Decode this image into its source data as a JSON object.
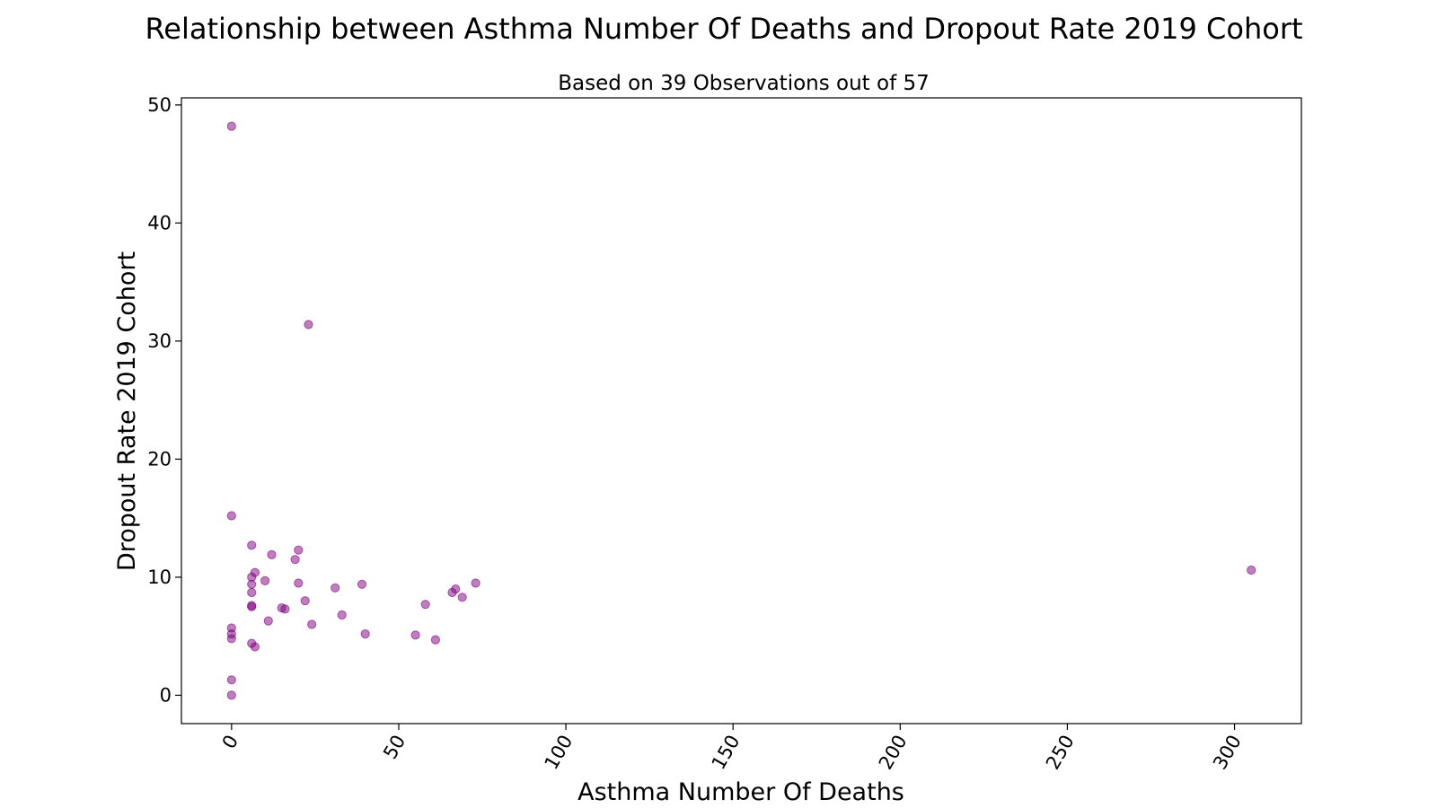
{
  "chart_data": {
    "type": "scatter",
    "title": "Relationship between Asthma Number Of Deaths and Dropout Rate 2019 Cohort",
    "subtitle": "Based on 39 Observations out of 57",
    "xlabel": "Asthma Number Of Deaths",
    "ylabel": "Dropout Rate 2019 Cohort",
    "xlim": [
      -15,
      320
    ],
    "ylim": [
      -2.4,
      50.6
    ],
    "xticks": [
      0,
      50,
      100,
      150,
      200,
      250,
      300
    ],
    "yticks": [
      0,
      10,
      20,
      30,
      40,
      50
    ],
    "grid": false,
    "legend": "none",
    "marker_color": "#800080",
    "marker_opacity": 0.5,
    "points": [
      {
        "x": 0,
        "y": 48.2
      },
      {
        "x": 0,
        "y": 15.2
      },
      {
        "x": 0,
        "y": 5.7
      },
      {
        "x": 0,
        "y": 5.2
      },
      {
        "x": 0,
        "y": 4.8
      },
      {
        "x": 0,
        "y": 1.3
      },
      {
        "x": 0,
        "y": 0.0
      },
      {
        "x": 6,
        "y": 12.7
      },
      {
        "x": 6,
        "y": 10.0
      },
      {
        "x": 6,
        "y": 9.4
      },
      {
        "x": 6,
        "y": 8.7
      },
      {
        "x": 6,
        "y": 7.6
      },
      {
        "x": 6,
        "y": 7.5
      },
      {
        "x": 6,
        "y": 4.4
      },
      {
        "x": 7,
        "y": 10.4
      },
      {
        "x": 7,
        "y": 4.1
      },
      {
        "x": 10,
        "y": 9.7
      },
      {
        "x": 11,
        "y": 6.3
      },
      {
        "x": 12,
        "y": 11.9
      },
      {
        "x": 15,
        "y": 7.4
      },
      {
        "x": 16,
        "y": 7.3
      },
      {
        "x": 19,
        "y": 11.5
      },
      {
        "x": 20,
        "y": 12.3
      },
      {
        "x": 20,
        "y": 9.5
      },
      {
        "x": 22,
        "y": 8.0
      },
      {
        "x": 23,
        "y": 31.4
      },
      {
        "x": 24,
        "y": 6.0
      },
      {
        "x": 31,
        "y": 9.1
      },
      {
        "x": 33,
        "y": 6.8
      },
      {
        "x": 39,
        "y": 9.4
      },
      {
        "x": 40,
        "y": 5.2
      },
      {
        "x": 55,
        "y": 5.1
      },
      {
        "x": 58,
        "y": 7.7
      },
      {
        "x": 61,
        "y": 4.7
      },
      {
        "x": 66,
        "y": 8.7
      },
      {
        "x": 67,
        "y": 9.0
      },
      {
        "x": 69,
        "y": 8.3
      },
      {
        "x": 73,
        "y": 9.5
      },
      {
        "x": 305,
        "y": 10.6
      }
    ]
  }
}
